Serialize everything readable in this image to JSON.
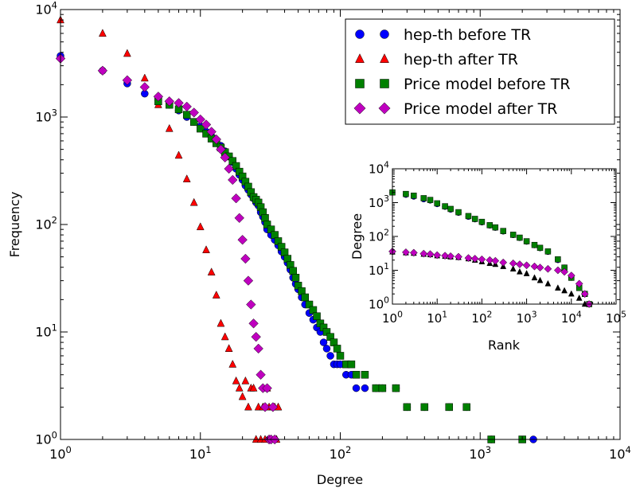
{
  "chart_data": [
    {
      "type": "scatter",
      "xlabel": "Degree",
      "ylabel": "Frequency",
      "xscale": "log",
      "yscale": "log",
      "xlim": [
        1,
        10000
      ],
      "ylim": [
        1,
        10000
      ],
      "x_ticks": [
        {
          "v": 1,
          "b": "10",
          "e": "0"
        },
        {
          "v": 10,
          "b": "10",
          "e": "1"
        },
        {
          "v": 100,
          "b": "10",
          "e": "2"
        },
        {
          "v": 1000,
          "b": "10",
          "e": "3"
        },
        {
          "v": 10000,
          "b": "10",
          "e": "4"
        }
      ],
      "y_ticks": [
        {
          "v": 1,
          "b": "10",
          "e": "0"
        },
        {
          "v": 10,
          "b": "10",
          "e": "1"
        },
        {
          "v": 100,
          "b": "10",
          "e": "2"
        },
        {
          "v": 1000,
          "b": "10",
          "e": "3"
        },
        {
          "v": 10000,
          "b": "10",
          "e": "4"
        }
      ],
      "grid": false,
      "legend_position": "top-right",
      "series": [
        {
          "name": "hep-th before TR",
          "marker": "circle",
          "color": "#0000ff",
          "x": [
            1,
            2,
            3,
            4,
            5,
            6,
            7,
            8,
            9,
            10,
            11,
            12,
            13,
            14,
            15,
            16,
            17,
            18,
            19,
            20,
            21,
            22,
            23,
            24,
            25,
            26,
            27,
            28,
            29,
            30,
            32,
            34,
            36,
            38,
            40,
            42,
            44,
            46,
            48,
            50,
            53,
            56,
            60,
            64,
            68,
            72,
            76,
            80,
            85,
            90,
            95,
            100,
            110,
            120,
            130,
            150,
            180,
            200,
            250,
            300,
            400,
            600,
            800,
            1200,
            2400
          ],
          "y": [
            3700,
            2700,
            2050,
            1650,
            1450,
            1300,
            1150,
            1000,
            900,
            820,
            730,
            660,
            600,
            540,
            480,
            430,
            380,
            330,
            290,
            260,
            230,
            210,
            190,
            175,
            160,
            150,
            130,
            118,
            105,
            90,
            80,
            72,
            64,
            56,
            50,
            44,
            38,
            32,
            28,
            25,
            21,
            18,
            15,
            13,
            11,
            10,
            8,
            7,
            6,
            5,
            5,
            5,
            4,
            4,
            3,
            3,
            3,
            3,
            3,
            2,
            2,
            2,
            2,
            1,
            1
          ]
        },
        {
          "name": "hep-th after TR",
          "marker": "triangle",
          "color": "#ff0000",
          "x": [
            1,
            2,
            3,
            4,
            5,
            6,
            7,
            8,
            9,
            10,
            11,
            12,
            13,
            14,
            15,
            16,
            17,
            18,
            19,
            20,
            21,
            22,
            23,
            24,
            25,
            26,
            27,
            28,
            29,
            30,
            31,
            32,
            33,
            34,
            35,
            36
          ],
          "y": [
            8000,
            6000,
            3900,
            2300,
            1300,
            780,
            440,
            265,
            160,
            95,
            58,
            36,
            22,
            12,
            9,
            7,
            5,
            3.5,
            3,
            2.5,
            3.5,
            2,
            3,
            3,
            1,
            2,
            1,
            2,
            1,
            3,
            2,
            1,
            2,
            2,
            1,
            2
          ]
        },
        {
          "name": "Price model before TR",
          "marker": "square",
          "color": "#008000",
          "x": [
            5,
            6,
            7,
            8,
            9,
            10,
            11,
            12,
            13,
            14,
            15,
            16,
            17,
            18,
            19,
            20,
            21,
            22,
            23,
            24,
            25,
            26,
            27,
            28,
            29,
            30,
            32,
            34,
            36,
            38,
            40,
            42,
            44,
            46,
            48,
            50,
            53,
            56,
            60,
            64,
            68,
            72,
            76,
            80,
            85,
            90,
            95,
            100,
            110,
            120,
            130,
            150,
            180,
            200,
            250,
            300,
            400,
            600,
            800,
            1200,
            2000
          ],
          "y": [
            1400,
            1300,
            1180,
            1050,
            900,
            780,
            700,
            630,
            570,
            520,
            470,
            430,
            390,
            350,
            310,
            280,
            250,
            225,
            200,
            180,
            170,
            160,
            145,
            130,
            115,
            100,
            90,
            80,
            70,
            62,
            55,
            48,
            42,
            37,
            32,
            27,
            24,
            21,
            18,
            16,
            14,
            12,
            11,
            10,
            9,
            8,
            7,
            6,
            5,
            5,
            4,
            4,
            3,
            3,
            3,
            2,
            2,
            2,
            2,
            1,
            1
          ]
        },
        {
          "name": "Price model after TR",
          "marker": "diamond",
          "color": "#bf00bf",
          "x": [
            1,
            2,
            3,
            4,
            5,
            6,
            7,
            8,
            9,
            10,
            11,
            12,
            13,
            14,
            15,
            16,
            17,
            18,
            19,
            20,
            21,
            22,
            23,
            24,
            25,
            26,
            27,
            28,
            29,
            30,
            31,
            32,
            33,
            34
          ],
          "y": [
            3500,
            2700,
            2200,
            1900,
            1550,
            1400,
            1350,
            1250,
            1100,
            950,
            850,
            730,
            620,
            500,
            420,
            330,
            260,
            175,
            115,
            72,
            48,
            30,
            18,
            12,
            9,
            7,
            4,
            3,
            2,
            3,
            1,
            1,
            2,
            1
          ]
        }
      ]
    },
    {
      "type": "scatter",
      "xlabel": "Rank",
      "ylabel": "Degree",
      "xscale": "log",
      "yscale": "log",
      "xlim": [
        1,
        100000
      ],
      "ylim": [
        1,
        10000
      ],
      "x_ticks": [
        {
          "v": 1,
          "b": "10",
          "e": "0"
        },
        {
          "v": 10,
          "b": "10",
          "e": "1"
        },
        {
          "v": 100,
          "b": "10",
          "e": "2"
        },
        {
          "v": 1000,
          "b": "10",
          "e": "3"
        },
        {
          "v": 10000,
          "b": "10",
          "e": "4"
        },
        {
          "v": 100000,
          "b": "10",
          "e": "5"
        }
      ],
      "y_ticks": [
        {
          "v": 1,
          "b": "10",
          "e": "0"
        },
        {
          "v": 10,
          "b": "10",
          "e": "1"
        },
        {
          "v": 100,
          "b": "10",
          "e": "2"
        },
        {
          "v": 1000,
          "b": "10",
          "e": "3"
        },
        {
          "v": 10000,
          "b": "10",
          "e": "4"
        }
      ],
      "grid": false,
      "series": [
        {
          "marker": "circle",
          "color": "#0000ff",
          "x": [
            1,
            2,
            3,
            5,
            7,
            10,
            15,
            20,
            30,
            50,
            70,
            100,
            150,
            200,
            300,
            500,
            700,
            1000,
            1500,
            2000,
            3000,
            5000,
            7000,
            10000,
            15000,
            20000,
            25000
          ],
          "y": [
            2000,
            1700,
            1500,
            1250,
            1150,
            900,
            750,
            620,
            500,
            380,
            320,
            260,
            210,
            180,
            140,
            110,
            90,
            70,
            55,
            45,
            35,
            20,
            12,
            6,
            3,
            2,
            1
          ]
        },
        {
          "marker": "square",
          "color": "#008000",
          "x": [
            1,
            2,
            3,
            5,
            7,
            10,
            15,
            20,
            30,
            50,
            70,
            100,
            150,
            200,
            300,
            500,
            700,
            1000,
            1500,
            2000,
            3000,
            5000,
            7000,
            10000,
            15000,
            20000,
            25000
          ],
          "y": [
            2000,
            1800,
            1600,
            1350,
            1200,
            950,
            780,
            650,
            520,
            400,
            330,
            270,
            215,
            185,
            145,
            112,
            92,
            72,
            56,
            46,
            36,
            21,
            12,
            6,
            3,
            2,
            1
          ]
        },
        {
          "marker": "triangle",
          "color": "#000000",
          "x": [
            1,
            2,
            3,
            5,
            7,
            10,
            15,
            20,
            30,
            50,
            70,
            100,
            150,
            200,
            300,
            500,
            700,
            1000,
            1500,
            2000,
            3000,
            5000,
            7000,
            10000,
            15000,
            20000
          ],
          "y": [
            35,
            33,
            32,
            30,
            29,
            27,
            26,
            25,
            24,
            22,
            20,
            18,
            16,
            15,
            13,
            11,
            9,
            8,
            6,
            5,
            4,
            3,
            2.5,
            2,
            1.5,
            1
          ]
        },
        {
          "marker": "diamond",
          "color": "#bf00bf",
          "x": [
            1,
            2,
            3,
            5,
            7,
            10,
            15,
            20,
            30,
            50,
            70,
            100,
            150,
            200,
            300,
            500,
            700,
            1000,
            1500,
            2000,
            3000,
            5000,
            7000,
            10000,
            15000,
            20000,
            25000
          ],
          "y": [
            36,
            34,
            33,
            31,
            30,
            28,
            27,
            26,
            25,
            23,
            22,
            21,
            20,
            19,
            17,
            16,
            15,
            14,
            13,
            12,
            11,
            10,
            9,
            7,
            4,
            2,
            1
          ]
        }
      ]
    }
  ]
}
